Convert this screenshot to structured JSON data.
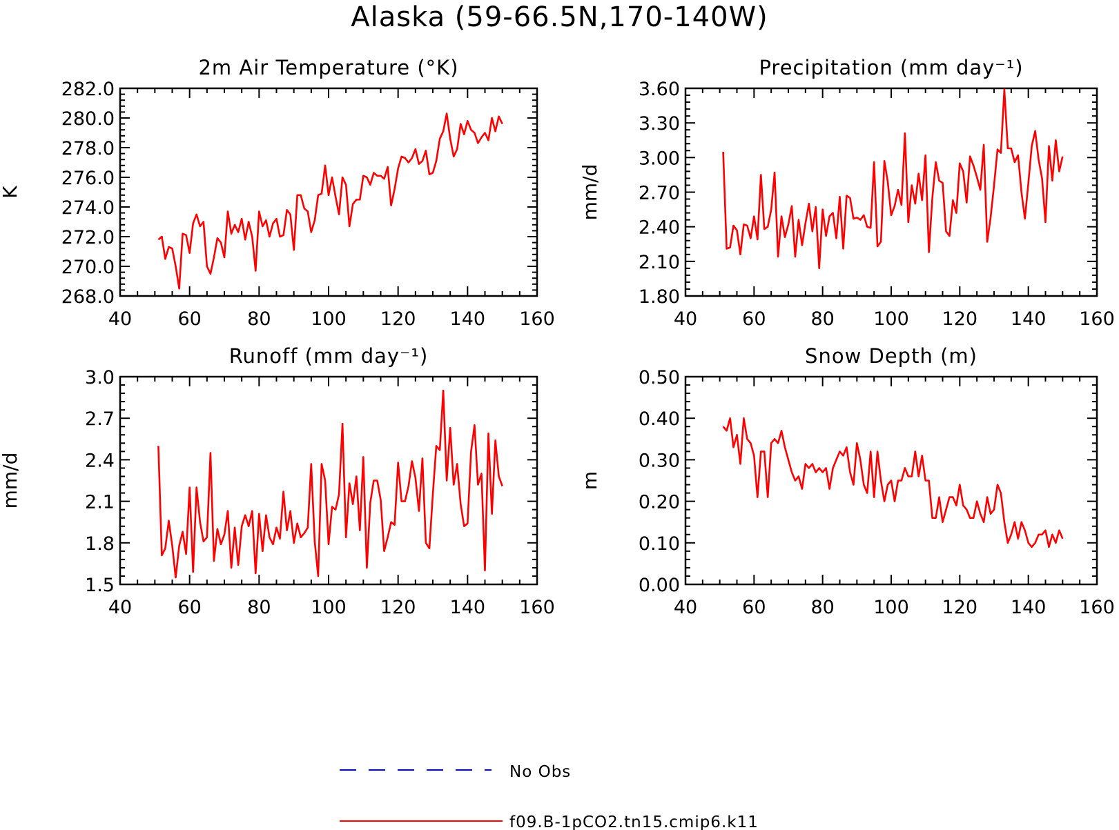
{
  "title": "Alaska (59-66.5N,170-140W)",
  "colors": {
    "model": "#ff0000",
    "obs": "#0000ff",
    "axis": "#000000"
  },
  "legend": {
    "obs_label": "No Obs",
    "model_label": "f09.B-1pCO2.tn15.cmip6.k11"
  },
  "chart_data": [
    {
      "type": "line",
      "title": "2m Air Temperature (°K)",
      "ylabel": "K",
      "xlim": [
        40,
        160
      ],
      "ylim": [
        268,
        282
      ],
      "xticks": [
        "40",
        "60",
        "80",
        "100",
        "120",
        "140",
        "160"
      ],
      "yticks": [
        "268.0",
        "270.0",
        "272.0",
        "274.0",
        "276.0",
        "278.0",
        "280.0",
        "282.0"
      ],
      "x_start": 51,
      "series": [
        {
          "name": "f09.B-1pCO2.tn15.cmip6.k11",
          "values": [
            271.8,
            272.0,
            270.5,
            271.3,
            271.2,
            270.0,
            268.5,
            272.2,
            272.1,
            270.9,
            272.9,
            273.5,
            272.7,
            273.0,
            270.0,
            269.5,
            270.6,
            271.9,
            271.6,
            270.6,
            273.7,
            272.2,
            272.8,
            272.3,
            273.2,
            271.8,
            273.0,
            272.0,
            269.7,
            273.7,
            272.7,
            273.1,
            272.0,
            272.9,
            273.2,
            272.0,
            272.1,
            273.8,
            273.5,
            271.1,
            274.8,
            274.8,
            273.9,
            273.7,
            272.3,
            273.1,
            274.8,
            274.9,
            276.8,
            274.8,
            276.0,
            274.7,
            273.5,
            276.0,
            275.5,
            272.7,
            274.2,
            274.5,
            274.5,
            276.1,
            276.0,
            275.5,
            276.3,
            276.1,
            276.1,
            275.9,
            276.7,
            274.1,
            275.2,
            276.6,
            277.4,
            277.3,
            277.0,
            277.3,
            277.9,
            276.9,
            277.1,
            277.8,
            276.2,
            276.3,
            277.1,
            278.6,
            279.1,
            280.3,
            278.6,
            277.4,
            277.9,
            279.6,
            278.9,
            279.8,
            279.2,
            279.0,
            278.3,
            278.7,
            279.0,
            278.5,
            280.0,
            279.1,
            280.1,
            279.6
          ]
        }
      ]
    },
    {
      "type": "line",
      "title": "Precipitation (mm day⁻¹)",
      "ylabel": "mm/d",
      "xlim": [
        40,
        160
      ],
      "ylim": [
        1.8,
        3.6
      ],
      "xticks": [
        "40",
        "60",
        "80",
        "100",
        "120",
        "140",
        "160"
      ],
      "yticks": [
        "1.80",
        "2.10",
        "2.40",
        "2.70",
        "3.00",
        "3.30",
        "3.60"
      ],
      "x_start": 51,
      "series": [
        {
          "name": "f09.B-1pCO2.tn15.cmip6.k11",
          "values": [
            3.05,
            2.21,
            2.22,
            2.41,
            2.37,
            2.16,
            2.42,
            2.41,
            2.3,
            2.49,
            2.29,
            2.85,
            2.38,
            2.4,
            2.55,
            2.87,
            2.14,
            2.49,
            2.31,
            2.42,
            2.58,
            2.14,
            2.46,
            2.24,
            2.43,
            2.6,
            2.36,
            2.57,
            2.04,
            2.55,
            2.32,
            2.49,
            2.52,
            2.3,
            2.66,
            2.21,
            2.67,
            2.65,
            2.47,
            2.48,
            2.46,
            2.5,
            2.4,
            2.39,
            2.96,
            2.23,
            2.27,
            2.97,
            2.79,
            2.5,
            2.58,
            2.72,
            2.59,
            3.21,
            2.44,
            2.76,
            2.6,
            2.86,
            2.63,
            3.02,
            2.18,
            2.65,
            2.96,
            2.8,
            2.78,
            2.36,
            2.32,
            2.63,
            2.52,
            2.95,
            2.88,
            2.61,
            3.01,
            2.93,
            2.83,
            2.72,
            3.11,
            2.27,
            2.48,
            2.76,
            3.07,
            3.04,
            3.59,
            3.08,
            3.08,
            2.96,
            3.02,
            2.7,
            2.47,
            2.78,
            3.1,
            3.23,
            2.98,
            2.82,
            2.44,
            3.1,
            2.8,
            3.15,
            2.88,
            3.01
          ]
        }
      ]
    },
    {
      "type": "line",
      "title": "Runoff (mm day⁻¹)",
      "ylabel": "mm/d",
      "xlim": [
        40,
        160
      ],
      "ylim": [
        1.5,
        3.0
      ],
      "xticks": [
        "40",
        "60",
        "80",
        "100",
        "120",
        "140",
        "160"
      ],
      "yticks": [
        "1.5",
        "1.8",
        "2.1",
        "2.4",
        "2.7",
        "3.0"
      ],
      "x_start": 51,
      "series": [
        {
          "name": "f09.B-1pCO2.tn15.cmip6.k11",
          "values": [
            2.5,
            1.71,
            1.76,
            1.96,
            1.78,
            1.55,
            1.78,
            1.88,
            1.72,
            2.2,
            1.59,
            2.2,
            1.95,
            1.81,
            1.84,
            2.45,
            1.67,
            1.9,
            1.79,
            1.86,
            2.03,
            1.62,
            1.91,
            1.64,
            1.92,
            2.0,
            1.92,
            2.03,
            1.58,
            2.01,
            1.74,
            2.0,
            1.84,
            1.79,
            1.91,
            1.83,
            2.17,
            1.89,
            2.03,
            1.8,
            1.94,
            1.84,
            1.87,
            1.91,
            2.37,
            1.81,
            1.56,
            2.37,
            2.25,
            1.79,
            2.06,
            2.04,
            2.15,
            2.66,
            1.84,
            2.23,
            2.08,
            2.28,
            1.89,
            2.42,
            1.62,
            2.09,
            2.25,
            2.25,
            2.11,
            1.74,
            1.84,
            1.95,
            1.93,
            2.38,
            2.1,
            2.1,
            2.21,
            2.39,
            2.27,
            2.03,
            2.41,
            1.8,
            1.76,
            2.15,
            2.5,
            2.47,
            2.9,
            2.25,
            2.63,
            2.22,
            2.37,
            2.08,
            1.92,
            1.94,
            2.46,
            2.65,
            2.22,
            2.3,
            1.6,
            2.59,
            2.01,
            2.54,
            2.28,
            2.21
          ]
        }
      ]
    },
    {
      "type": "line",
      "title": "Snow Depth (m)",
      "ylabel": "m",
      "xlim": [
        40,
        160
      ],
      "ylim": [
        0.0,
        0.5
      ],
      "xticks": [
        "40",
        "60",
        "80",
        "100",
        "120",
        "140",
        "160"
      ],
      "yticks": [
        "0.00",
        "0.10",
        "0.20",
        "0.30",
        "0.40",
        "0.50"
      ],
      "x_start": 51,
      "series": [
        {
          "name": "f09.B-1pCO2.tn15.cmip6.k11",
          "values": [
            0.38,
            0.37,
            0.4,
            0.33,
            0.36,
            0.29,
            0.4,
            0.35,
            0.34,
            0.31,
            0.21,
            0.32,
            0.32,
            0.21,
            0.34,
            0.35,
            0.34,
            0.37,
            0.33,
            0.3,
            0.27,
            0.25,
            0.26,
            0.23,
            0.29,
            0.28,
            0.29,
            0.27,
            0.28,
            0.27,
            0.28,
            0.23,
            0.28,
            0.3,
            0.32,
            0.31,
            0.33,
            0.27,
            0.24,
            0.34,
            0.3,
            0.24,
            0.22,
            0.32,
            0.21,
            0.32,
            0.25,
            0.2,
            0.24,
            0.25,
            0.2,
            0.25,
            0.25,
            0.28,
            0.26,
            0.26,
            0.32,
            0.26,
            0.31,
            0.25,
            0.25,
            0.16,
            0.16,
            0.21,
            0.15,
            0.18,
            0.21,
            0.21,
            0.19,
            0.24,
            0.19,
            0.18,
            0.16,
            0.16,
            0.2,
            0.17,
            0.15,
            0.21,
            0.17,
            0.18,
            0.24,
            0.22,
            0.15,
            0.1,
            0.12,
            0.15,
            0.11,
            0.15,
            0.13,
            0.1,
            0.09,
            0.1,
            0.12,
            0.12,
            0.13,
            0.09,
            0.12,
            0.1,
            0.13,
            0.11
          ]
        }
      ]
    }
  ]
}
